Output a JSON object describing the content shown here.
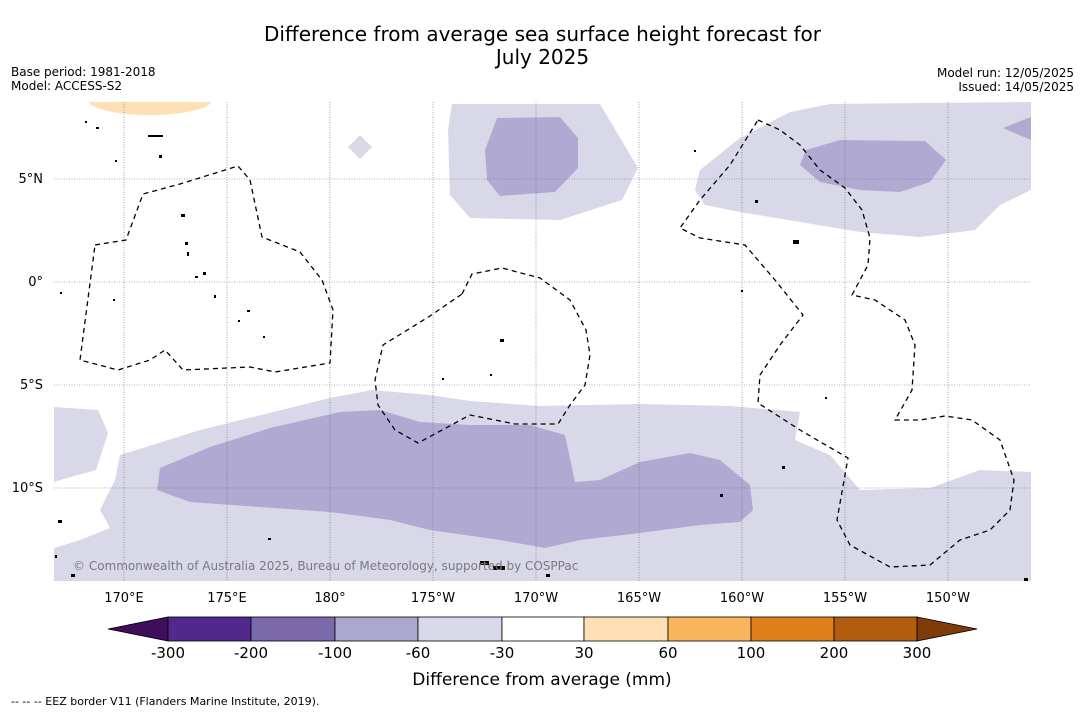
{
  "title": {
    "line1": "Difference from average sea surface height forecast for",
    "line2": "July 2025"
  },
  "meta": {
    "base_period": "Base period: 1981-2018",
    "model": "Model: ACCESS-S2",
    "model_run": "Model run: 12/05/2025",
    "issued": "Issued: 14/05/2025"
  },
  "map": {
    "lat_labels": [
      "5°N",
      "0°",
      "5°S",
      "10°S"
    ],
    "lon_labels": [
      "170°E",
      "175°E",
      "180°",
      "175°W",
      "170°W",
      "165°W",
      "160°W",
      "155°W",
      "150°W"
    ],
    "credit": "© Commonwealth of Australia 2025, Bureau of Meteorology, supported by COSPPac",
    "fill_colors": {
      "light": "#d8d8e9",
      "medium": "#b0aad3",
      "warm": "#fde0b6"
    }
  },
  "colorbar": {
    "title": "Difference from average (mm)",
    "ticks": [
      "-300",
      "-200",
      "-100",
      "-60",
      "-30",
      "30",
      "60",
      "100",
      "200",
      "300"
    ],
    "colors": {
      "under": "#3f0d5c",
      "bins": [
        "#54278f",
        "#7b6aab",
        "#aca7cf",
        "#d8d8e9",
        "#ffffff",
        "#fde0b6",
        "#f9b55c",
        "#df7f1a",
        "#b25c0e"
      ],
      "over": "#7f3b08"
    }
  },
  "footer": {
    "legend_text": "-- -- -- EEZ border V11 (Flanders Marine Institute, 2019)."
  }
}
